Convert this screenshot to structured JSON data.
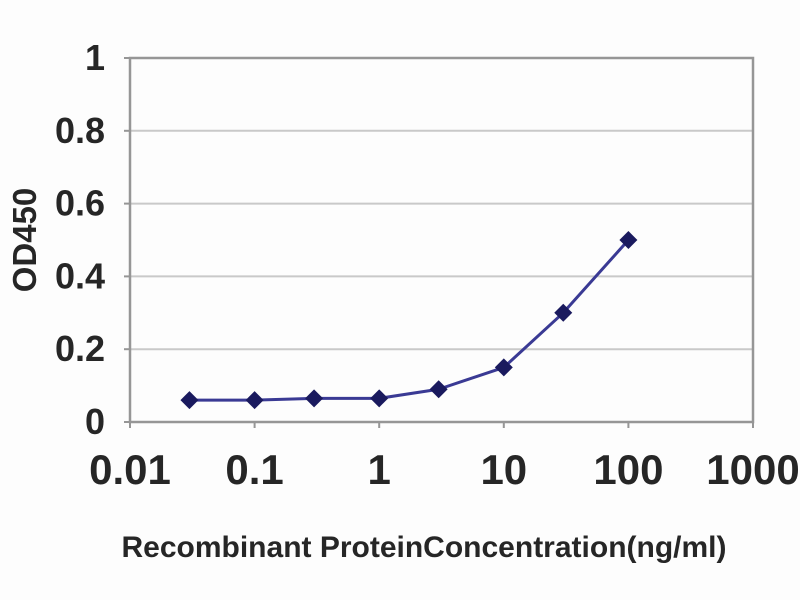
{
  "chart_data": {
    "type": "line",
    "title": "",
    "xlabel": "Recombinant ProteinConcentration(ng/ml)",
    "ylabel": "OD450",
    "xscale": "log",
    "xlim": [
      0.01,
      1000
    ],
    "ylim": [
      0,
      1
    ],
    "xticks": [
      0.01,
      0.1,
      1,
      10,
      100,
      1000
    ],
    "xtick_labels": [
      "0.01",
      "0.1",
      "1",
      "10",
      "100",
      "1000"
    ],
    "yticks": [
      0,
      0.2,
      0.4,
      0.6,
      0.8,
      1
    ],
    "ytick_labels": [
      "0",
      "0.2",
      "0.4",
      "0.6",
      "0.8",
      "1"
    ],
    "grid": true,
    "legend": false,
    "marker_shape": "diamond",
    "series": [
      {
        "x": [
          0.03,
          0.1,
          0.3,
          1,
          3,
          10,
          30,
          100
        ],
        "y": [
          0.06,
          0.06,
          0.065,
          0.065,
          0.09,
          0.15,
          0.3,
          0.5
        ]
      }
    ],
    "colors": {
      "line": "#3a3a94",
      "marker": "#1a1a5e",
      "gridline": "#c9c9c9",
      "frame": "#969696",
      "text": "#262626",
      "background": "#fdfdfd"
    }
  }
}
